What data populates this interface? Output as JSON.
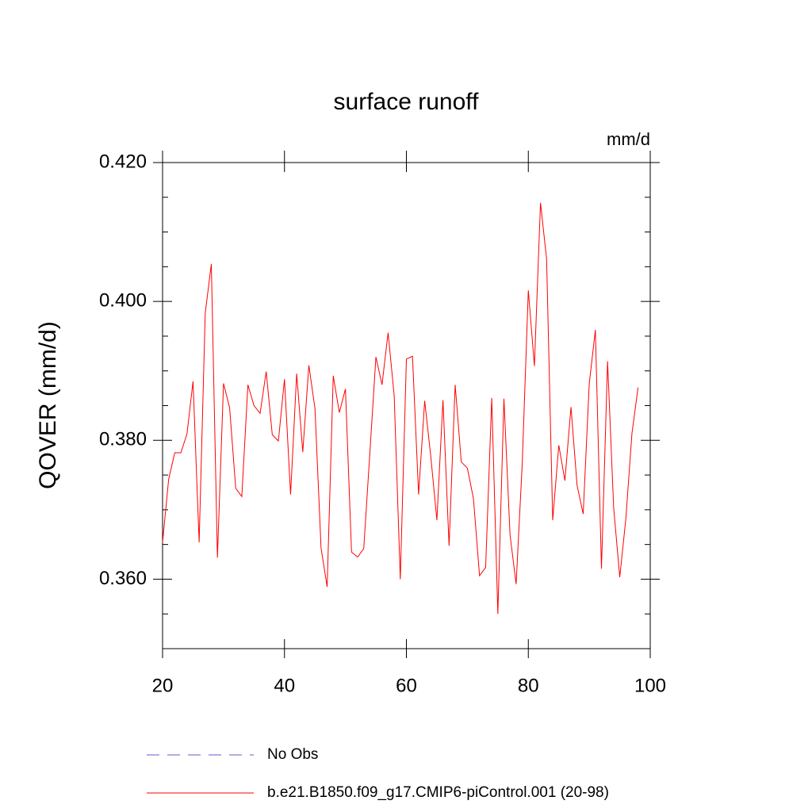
{
  "chart_data": {
    "type": "line",
    "title": "surface runoff",
    "units": "mm/d",
    "y_label": "QOVER  (mm/d)",
    "x": [
      20,
      21,
      22,
      23,
      24,
      25,
      26,
      27,
      28,
      29,
      30,
      31,
      32,
      33,
      34,
      35,
      36,
      37,
      38,
      39,
      40,
      41,
      42,
      43,
      44,
      45,
      46,
      47,
      48,
      49,
      50,
      51,
      52,
      53,
      54,
      55,
      56,
      57,
      58,
      59,
      60,
      61,
      62,
      63,
      64,
      65,
      66,
      67,
      68,
      69,
      70,
      71,
      72,
      73,
      74,
      75,
      76,
      77,
      78,
      79,
      80,
      81,
      82,
      83,
      84,
      85,
      86,
      87,
      88,
      89,
      90,
      91,
      92,
      93,
      94,
      95,
      96,
      97,
      98
    ],
    "series": [
      {
        "name": "No Obs",
        "color": "#6a5acd",
        "dashed": true,
        "values": [
          null,
          null,
          null,
          null,
          null,
          null,
          null,
          null,
          null,
          null,
          null,
          null,
          null,
          null,
          null,
          null,
          null,
          null,
          null,
          null,
          null,
          null,
          null,
          null,
          null,
          null,
          null,
          null,
          null,
          null,
          null,
          null,
          null,
          null,
          null,
          null,
          null,
          null,
          null,
          null,
          null,
          null,
          null,
          null,
          null,
          null,
          null,
          null,
          null,
          null,
          null,
          null,
          null,
          null,
          null,
          null,
          null,
          null,
          null,
          null,
          null,
          null,
          null,
          null,
          null,
          null,
          null,
          null,
          null,
          null,
          null,
          null,
          null,
          null,
          null,
          null,
          null,
          null,
          null
        ]
      },
      {
        "name": "b.e21.B1850.f09_g17.CMIP6-piControl.001 (20-98)",
        "color": "#ff0000",
        "dashed": false,
        "values": [
          0.3653,
          0.3744,
          0.3782,
          0.3782,
          0.3809,
          0.3885,
          0.3653,
          0.3983,
          0.4054,
          0.3631,
          0.3882,
          0.3847,
          0.3731,
          0.3719,
          0.388,
          0.385,
          0.3839,
          0.3899,
          0.3808,
          0.3799,
          0.3888,
          0.3722,
          0.3896,
          0.3783,
          0.3908,
          0.3846,
          0.3645,
          0.3589,
          0.3893,
          0.384,
          0.3874,
          0.3639,
          0.3632,
          0.3644,
          0.3781,
          0.392,
          0.388,
          0.3955,
          0.3864,
          0.36,
          0.3917,
          0.3921,
          0.3722,
          0.3857,
          0.3777,
          0.3685,
          0.3858,
          0.3648,
          0.388,
          0.3769,
          0.376,
          0.3716,
          0.3605,
          0.3617,
          0.3861,
          0.355,
          0.386,
          0.3664,
          0.3593,
          0.3766,
          0.4016,
          0.3907,
          0.4142,
          0.4061,
          0.3685,
          0.3793,
          0.3742,
          0.3848,
          0.3735,
          0.3694,
          0.3882,
          0.3959,
          0.3615,
          0.3914,
          0.3703,
          0.3603,
          0.3687,
          0.381,
          0.3876
        ]
      }
    ],
    "xlim": [
      20,
      100
    ],
    "xticks": [
      20,
      40,
      60,
      80,
      100
    ],
    "ylim": [
      0.35,
      0.42
    ],
    "yticks": [
      {
        "value": 0.36,
        "label": "0.360"
      },
      {
        "value": 0.38,
        "label": "0.380"
      },
      {
        "value": 0.4,
        "label": "0.400"
      },
      {
        "value": 0.42,
        "label": "0.420"
      }
    ],
    "yminor_ticks": [
      0.355,
      0.365,
      0.37,
      0.375,
      0.385,
      0.39,
      0.395,
      0.405,
      0.41,
      0.415
    ]
  }
}
